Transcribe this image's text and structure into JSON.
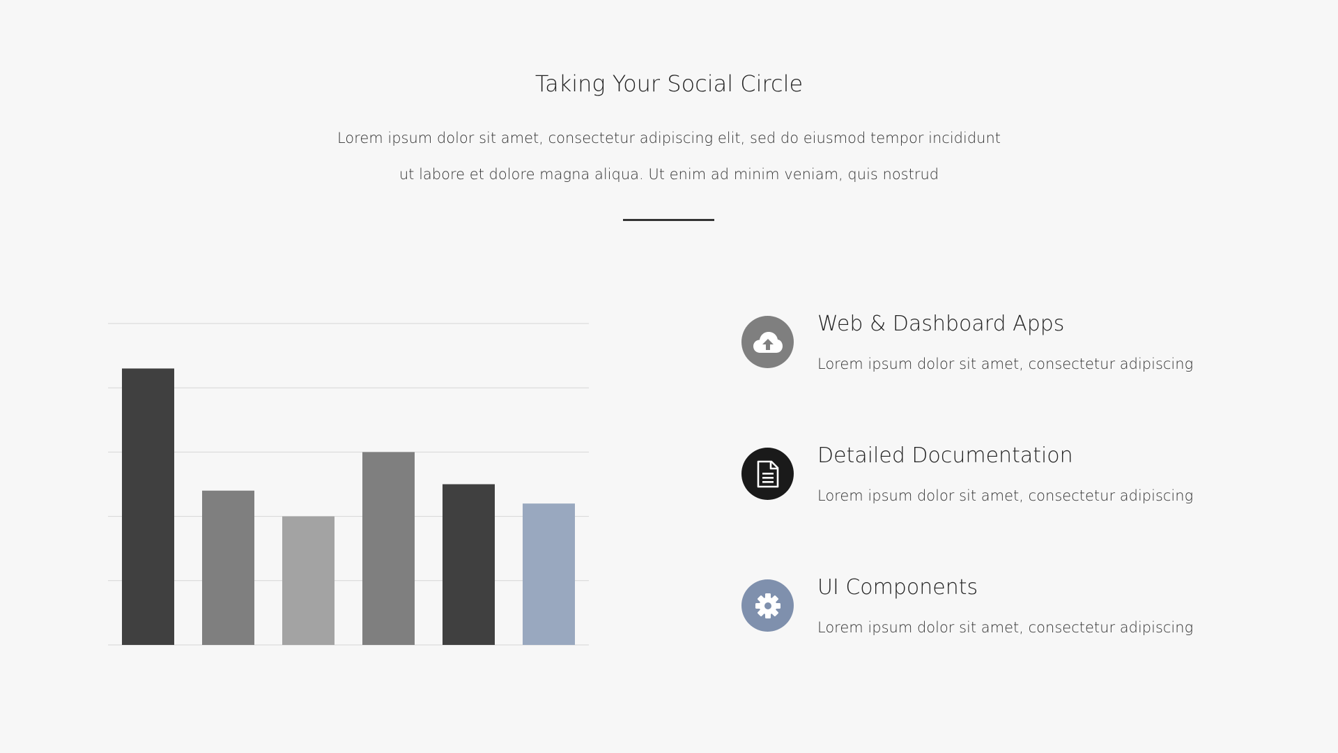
{
  "header": {
    "title": "Taking Your Social Circle",
    "subtitle_line1": "Lorem ipsum dolor sit amet, consectetur adipiscing elit, sed do eiusmod tempor incididunt",
    "subtitle_line2": "ut labore et dolore magna aliqua. Ut enim ad minim veniam, quis nostrud"
  },
  "chart_data": {
    "type": "bar",
    "categories": [
      "",
      "",
      "",
      "",
      "",
      ""
    ],
    "values": [
      86,
      48,
      40,
      60,
      50,
      44
    ],
    "colors": [
      "#404040",
      "#7f7f7f",
      "#a3a3a3",
      "#7f7f7f",
      "#404040",
      "#99a8bf"
    ],
    "ylim": [
      0,
      100
    ],
    "grid": true,
    "title": "",
    "xlabel": "",
    "ylabel": ""
  },
  "features": [
    {
      "title": "Web & Dashboard Apps",
      "description": "Lorem ipsum dolor sit amet, consectetur adipiscing",
      "icon": "cloud-upload-icon",
      "color": "#7f7f7f"
    },
    {
      "title": "Detailed Documentation",
      "description": "Lorem ipsum dolor sit amet, consectetur adipiscing",
      "icon": "document-icon",
      "color": "#1a1a1a"
    },
    {
      "title": "UI Components",
      "description": "Lorem ipsum dolor sit amet, consectetur adipiscing",
      "icon": "gear-icon",
      "color": "#7f90ad"
    }
  ]
}
